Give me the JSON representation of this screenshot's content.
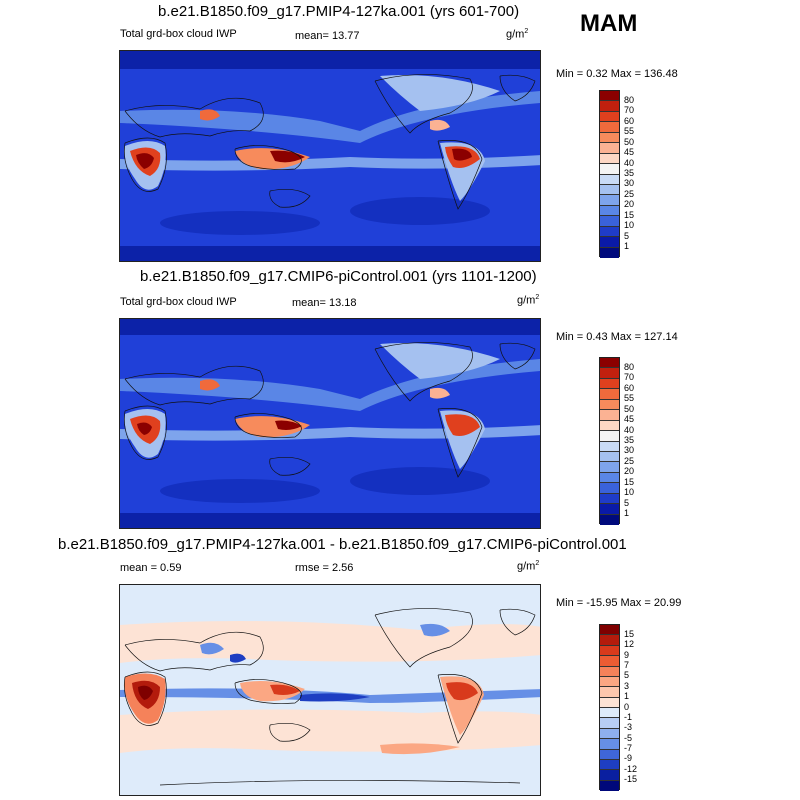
{
  "season": "MAM",
  "panels": [
    {
      "title": "b.e21.B1850.f09_g17.PMIP4-127ka.001 (yrs 601-700)",
      "left_label": "Total grd-box cloud IWP",
      "stat1": "mean=  13.77",
      "stat2": "",
      "units": "g/m",
      "units_sup": "2",
      "minmax": "Min =  0.32 Max = 136.48",
      "colorbar_labels": [
        "80",
        "70",
        "60",
        "55",
        "50",
        "45",
        "40",
        "35",
        "30",
        "25",
        "20",
        "15",
        "10",
        "5",
        "1"
      ],
      "colorbar_colors": [
        "#8b0000",
        "#c1200e",
        "#e0401e",
        "#f06a3c",
        "#f78b5c",
        "#fbb293",
        "#fdd7c4",
        "#f4f4f4",
        "#c9dbf6",
        "#a5c1f0",
        "#7ea4ec",
        "#5a86e6",
        "#3a62da",
        "#1f3cc8",
        "#0a1aa8",
        "#000a7c"
      ]
    },
    {
      "title": "b.e21.B1850.f09_g17.CMIP6-piControl.001 (yrs 1101-1200)",
      "left_label": "Total grd-box cloud IWP",
      "stat1": "mean=  13.18",
      "stat2": "",
      "units": "g/m",
      "units_sup": "2",
      "minmax": "Min =  0.43 Max = 127.14",
      "colorbar_labels": [
        "80",
        "70",
        "60",
        "55",
        "50",
        "45",
        "40",
        "35",
        "30",
        "25",
        "20",
        "15",
        "10",
        "5",
        "1"
      ],
      "colorbar_colors": [
        "#8b0000",
        "#c1200e",
        "#e0401e",
        "#f06a3c",
        "#f78b5c",
        "#fbb293",
        "#fdd7c4",
        "#f4f4f4",
        "#c9dbf6",
        "#a5c1f0",
        "#7ea4ec",
        "#5a86e6",
        "#3a62da",
        "#1f3cc8",
        "#0a1aa8",
        "#000a7c"
      ]
    },
    {
      "title": "b.e21.B1850.f09_g17.PMIP4-127ka.001 - b.e21.B1850.f09_g17.CMIP6-piControl.001",
      "left_label": "mean =   0.59",
      "stat1": "",
      "stat2": "rmse =   2.56",
      "units": "g/m",
      "units_sup": "2",
      "minmax": "Min = -15.95 Max =  20.99",
      "colorbar_labels": [
        "15",
        "12",
        "9",
        "7",
        "5",
        "3",
        "1",
        "0",
        "-1",
        "-3",
        "-5",
        "-7",
        "-9",
        "-12",
        "-15"
      ],
      "colorbar_colors": [
        "#7f0000",
        "#b31b0c",
        "#d83a1c",
        "#ec5c33",
        "#f5825a",
        "#fba783",
        "#fdc7ad",
        "#fde3d5",
        "#deebfa",
        "#b7cdf4",
        "#8eafee",
        "#668fe6",
        "#3f66d8",
        "#1e3ec2",
        "#0a1fa0",
        "#00087a"
      ]
    }
  ]
}
